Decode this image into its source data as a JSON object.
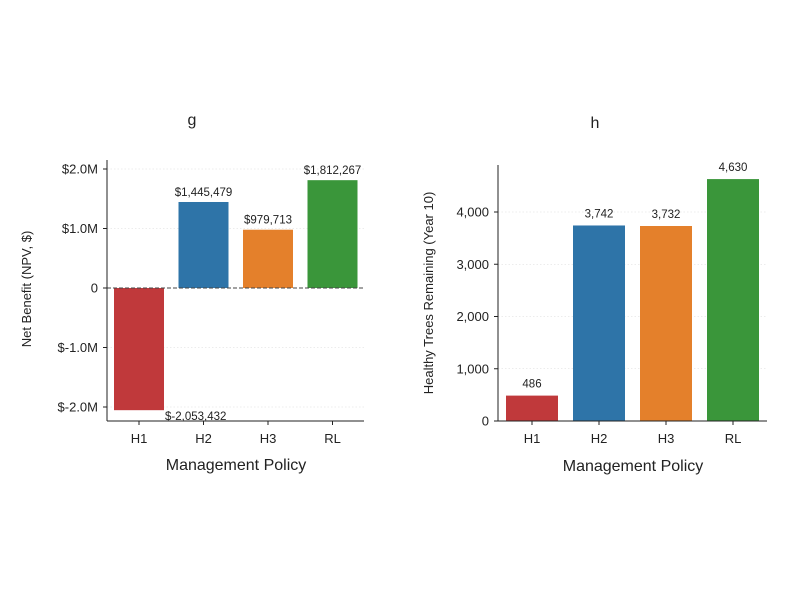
{
  "chart_data": [
    {
      "type": "bar",
      "title": "g",
      "xlabel": "Management Policy",
      "ylabel": "Net Benefit (NPV, $)",
      "categories": [
        "H1",
        "H2",
        "H3",
        "RL"
      ],
      "values": [
        -2053432,
        1445479,
        979713,
        1812267
      ],
      "value_labels": [
        "$-2,053,432",
        "$1,445,479",
        "$979,713",
        "$1,812,267"
      ],
      "colors": [
        "#c0393b",
        "#2e74a8",
        "#e4802b",
        "#3a963a"
      ],
      "ylim": [
        -2250000,
        2000000
      ],
      "yticks": [
        2000000,
        1000000,
        0,
        -1000000,
        -2000000
      ],
      "ytick_labels": [
        "$2.0M",
        "$1.0M",
        "0",
        "$-1.0M",
        "$-2.0M"
      ],
      "zero_line": true,
      "grid": "horizontal"
    },
    {
      "type": "bar",
      "title": "h",
      "xlabel": "Management Policy",
      "ylabel": "Healthy Trees Remaining (Year 10)",
      "categories": [
        "H1",
        "H2",
        "H3",
        "RL"
      ],
      "values": [
        486,
        3742,
        3732,
        4630
      ],
      "value_labels": [
        "486",
        "3,742",
        "3,732",
        "4,630"
      ],
      "colors": [
        "#c0393b",
        "#2e74a8",
        "#e4802b",
        "#3a963a"
      ],
      "ylim": [
        0,
        4900
      ],
      "yticks": [
        0,
        1000,
        2000,
        3000,
        4000
      ],
      "ytick_labels": [
        "0",
        "1,000",
        "2,000",
        "3,000",
        "4,000"
      ],
      "grid": "horizontal"
    }
  ]
}
